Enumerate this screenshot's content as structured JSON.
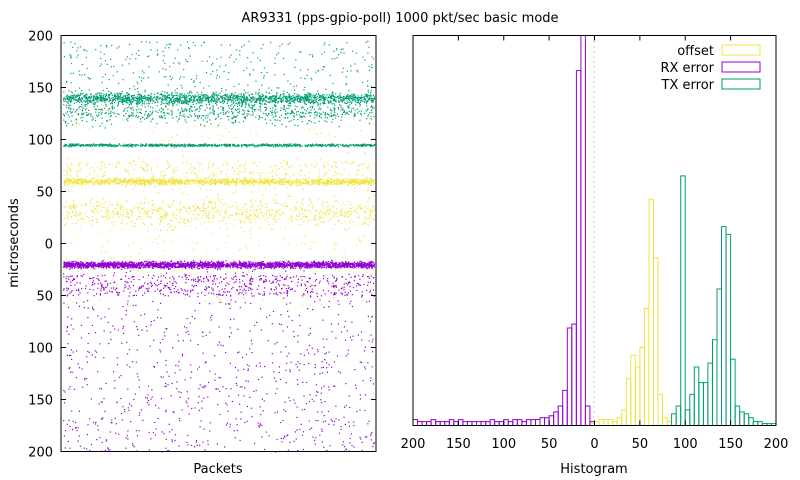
{
  "title": "AR9331 (pps-gpio-poll) 1000 pkt/sec basic mode",
  "colors": {
    "offset": "#f0e442",
    "rx": "#9400d3",
    "tx": "#009e73",
    "axis": "#000000"
  },
  "chart_data": [
    {
      "type": "scatter",
      "xlabel": "Packets",
      "ylabel": "microseconds",
      "ylim": [
        -200,
        200
      ],
      "yticks": [
        200,
        150,
        100,
        50,
        0,
        -50,
        -100,
        -150,
        -200
      ],
      "ytick_labels": [
        "200",
        "150",
        "100",
        "50",
        "0",
        "50",
        "100",
        "150",
        "200"
      ],
      "series": [
        {
          "name": "offset",
          "color": "#f0e442",
          "center": 60,
          "band_width": 3,
          "spread_up": 75,
          "spread_down": 120
        },
        {
          "name": "RX error",
          "color": "#9400d3",
          "center": -20,
          "band_width": 3,
          "spread_down": 180
        },
        {
          "name": "TX error",
          "color": "#009e73",
          "centers": [
            140,
            95
          ],
          "spread_up": 55,
          "spread_down": 20
        }
      ]
    },
    {
      "type": "histogram",
      "xlabel": "Histogram",
      "xlim": [
        -200,
        200
      ],
      "xticks": [
        -200,
        -150,
        -100,
        -50,
        0,
        50,
        100,
        150,
        200
      ],
      "xtick_labels": [
        "200",
        "150",
        "100",
        "50",
        "0",
        "50",
        "100",
        "150",
        "200"
      ],
      "bin_width": 5,
      "legend": {
        "placement": "top-right",
        "entries": [
          "offset",
          "RX error",
          "TX error"
        ]
      },
      "series": [
        {
          "name": "offset",
          "color": "#f0e442",
          "bins": [
            [
              -5,
              0.005
            ],
            [
              0,
              0.01
            ],
            [
              5,
              0.015
            ],
            [
              10,
              0.015
            ],
            [
              15,
              0.015
            ],
            [
              20,
              0.01
            ],
            [
              25,
              0.02
            ],
            [
              30,
              0.04
            ],
            [
              35,
              0.12
            ],
            [
              40,
              0.18
            ],
            [
              45,
              0.15
            ],
            [
              50,
              0.2
            ],
            [
              55,
              0.3
            ],
            [
              60,
              0.58
            ],
            [
              65,
              0.43
            ],
            [
              70,
              0.08
            ],
            [
              75,
              0.02
            ],
            [
              80,
              0.01
            ]
          ]
        },
        {
          "name": "RX error",
          "color": "#9400d3",
          "bins": [
            [
              -200,
              0.015
            ],
            [
              -195,
              0.01
            ],
            [
              -190,
              0.01
            ],
            [
              -185,
              0.01
            ],
            [
              -180,
              0.015
            ],
            [
              -175,
              0.01
            ],
            [
              -170,
              0.01
            ],
            [
              -165,
              0.01
            ],
            [
              -160,
              0.015
            ],
            [
              -155,
              0.01
            ],
            [
              -150,
              0.015
            ],
            [
              -145,
              0.01
            ],
            [
              -140,
              0.01
            ],
            [
              -135,
              0.01
            ],
            [
              -130,
              0.01
            ],
            [
              -125,
              0.01
            ],
            [
              -120,
              0.01
            ],
            [
              -115,
              0.015
            ],
            [
              -110,
              0.01
            ],
            [
              -105,
              0.01
            ],
            [
              -100,
              0.015
            ],
            [
              -95,
              0.01
            ],
            [
              -90,
              0.015
            ],
            [
              -85,
              0.015
            ],
            [
              -80,
              0.01
            ],
            [
              -75,
              0.015
            ],
            [
              -70,
              0.015
            ],
            [
              -65,
              0.015
            ],
            [
              -60,
              0.02
            ],
            [
              -55,
              0.02
            ],
            [
              -50,
              0.025
            ],
            [
              -45,
              0.035
            ],
            [
              -40,
              0.05
            ],
            [
              -35,
              0.09
            ],
            [
              -30,
              0.25
            ],
            [
              -25,
              0.26
            ],
            [
              -20,
              0.91
            ],
            [
              -15,
              1.0
            ],
            [
              -10,
              0.05
            ],
            [
              -5,
              0.01
            ]
          ]
        },
        {
          "name": "TX error",
          "color": "#009e73",
          "bins": [
            [
              85,
              0.03
            ],
            [
              90,
              0.05
            ],
            [
              95,
              0.64
            ],
            [
              100,
              0.04
            ],
            [
              105,
              0.08
            ],
            [
              110,
              0.15
            ],
            [
              115,
              0.11
            ],
            [
              120,
              0.11
            ],
            [
              125,
              0.16
            ],
            [
              130,
              0.22
            ],
            [
              135,
              0.35
            ],
            [
              140,
              0.51
            ],
            [
              145,
              0.49
            ],
            [
              150,
              0.17
            ],
            [
              155,
              0.05
            ],
            [
              160,
              0.035
            ],
            [
              165,
              0.03
            ],
            [
              170,
              0.02
            ],
            [
              175,
              0.01
            ],
            [
              180,
              0.01
            ],
            [
              185,
              0.005
            ],
            [
              190,
              0.005
            ],
            [
              195,
              0.005
            ]
          ]
        }
      ]
    }
  ]
}
